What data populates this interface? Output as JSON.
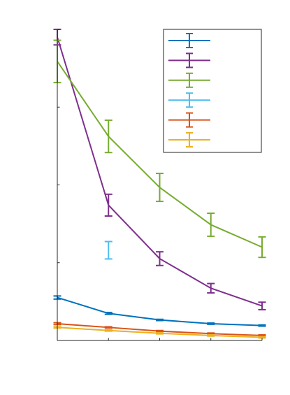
{
  "chart_data": {
    "type": "line",
    "title": "",
    "xlabel": "",
    "ylabel": "",
    "x": [
      0,
      1,
      2,
      3,
      4
    ],
    "xlim": [
      0,
      4
    ],
    "ylim": [
      0,
      1
    ],
    "grid": false,
    "legend": {
      "placement": "top-right",
      "labels_visible": false
    },
    "series": [
      {
        "color": "#0072BD",
        "y": [
          0.138,
          0.087,
          0.066,
          0.054,
          0.048
        ],
        "err": [
          0.005,
          0.003,
          0.002,
          0.002,
          0.002
        ]
      },
      {
        "color": "#7E2F8E",
        "y": [
          0.975,
          0.435,
          0.263,
          0.168,
          0.111
        ],
        "err": [
          0.025,
          0.035,
          0.022,
          0.015,
          0.012
        ]
      },
      {
        "color": "#77AC30",
        "y": [
          0.897,
          0.656,
          0.492,
          0.372,
          0.3
        ],
        "err": [
          0.068,
          0.052,
          0.045,
          0.037,
          0.033
        ]
      },
      {
        "color": "#4DBEEE",
        "y": [
          null,
          0.29,
          null,
          null,
          null
        ],
        "err": [
          null,
          0.028,
          null,
          null,
          null
        ]
      },
      {
        "color": "#D95319",
        "y": [
          0.054,
          0.042,
          0.03,
          0.022,
          0.016
        ],
        "err": [
          0.003,
          0.002,
          0.002,
          0.002,
          0.002
        ]
      },
      {
        "color": "#EDB120",
        "y": [
          0.042,
          0.032,
          0.023,
          0.016,
          0.01
        ],
        "err": [
          0.002,
          0.002,
          0.002,
          0.002,
          0.002
        ]
      }
    ]
  }
}
